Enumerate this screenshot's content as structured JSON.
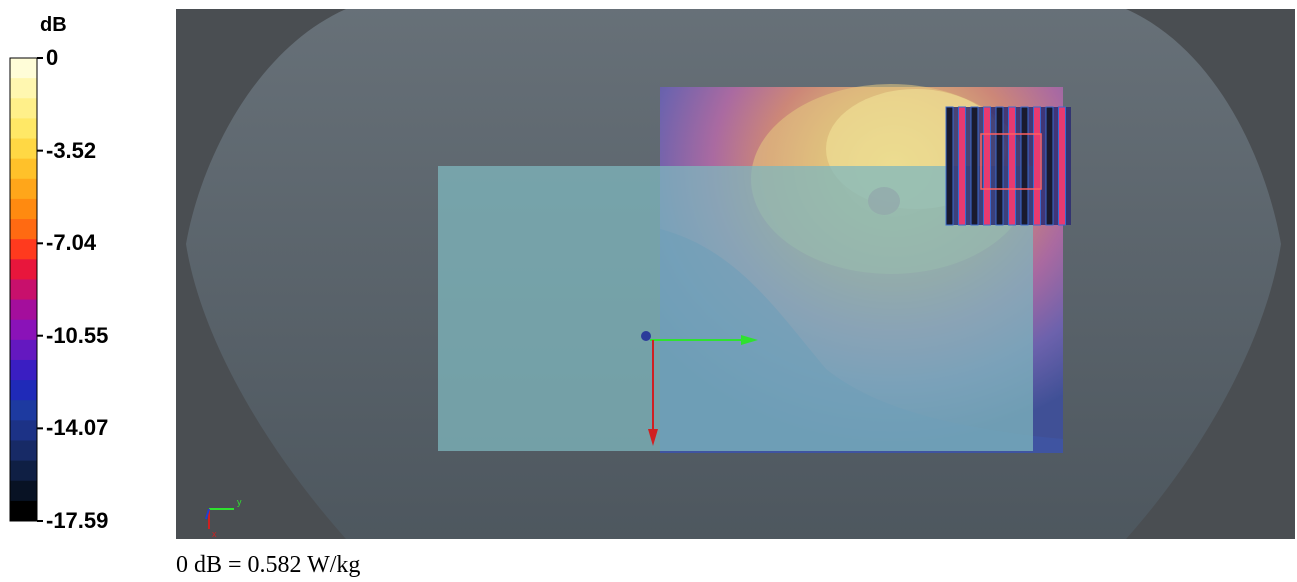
{
  "colorbar": {
    "unit_label": "dB",
    "ticks": [
      "0",
      "-3.52",
      "-7.04",
      "-10.55",
      "-14.07",
      "-17.59"
    ],
    "tick_values": [
      0,
      -3.52,
      -7.04,
      -10.55,
      -14.07,
      -17.59
    ],
    "colors": [
      "#fffdd8",
      "#fff7b0",
      "#fff08a",
      "#ffe866",
      "#ffd844",
      "#ffc12a",
      "#ffa61a",
      "#ff8a10",
      "#ff6a12",
      "#ff3a1e",
      "#e8163c",
      "#c8106c",
      "#a40e9c",
      "#8a12b8",
      "#6418c0",
      "#3a1ec2",
      "#1f2ab8",
      "#1d3aa0",
      "#1c3286",
      "#172a66",
      "#0f1f44",
      "#081224",
      "#000000"
    ]
  },
  "chart_data": {
    "type": "heatmap",
    "title": "",
    "colorbar_label": "dB",
    "colorbar_range": [
      -17.59,
      0
    ],
    "colorbar_ticks": [
      0,
      -3.52,
      -7.04,
      -10.55,
      -14.07,
      -17.59
    ],
    "reference": "0 dB = 0.582 W/kg",
    "axes_triad": {
      "y_label": "y",
      "x_label": "x"
    }
  },
  "viewport": {
    "background": "#4a4e52",
    "phantom_color": "#5f6d77",
    "plate_color": "#7fb7bd"
  },
  "caption": "0 dB = 0.582 W/kg"
}
